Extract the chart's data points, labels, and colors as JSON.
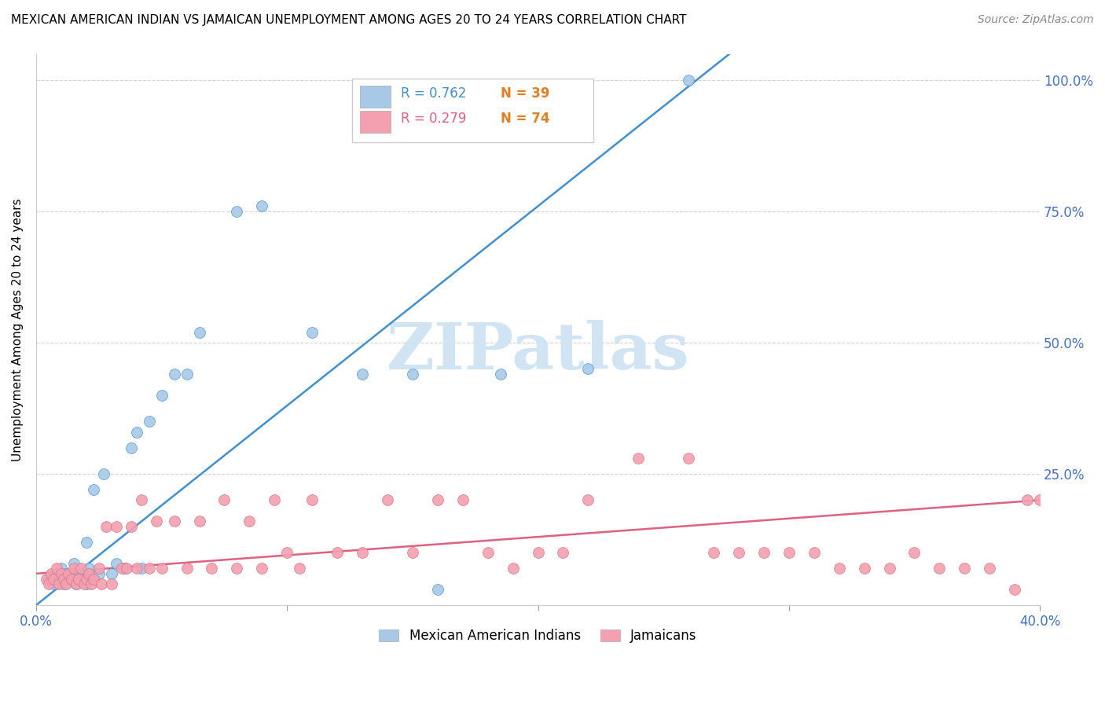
{
  "title": "MEXICAN AMERICAN INDIAN VS JAMAICAN UNEMPLOYMENT AMONG AGES 20 TO 24 YEARS CORRELATION CHART",
  "source": "Source: ZipAtlas.com",
  "ylabel": "Unemployment Among Ages 20 to 24 years",
  "xlim": [
    0.0,
    0.4
  ],
  "ylim": [
    0.0,
    1.05
  ],
  "ytick_labels_right": [
    "",
    "25.0%",
    "50.0%",
    "75.0%",
    "100.0%"
  ],
  "ytick_vals_right": [
    0.0,
    0.25,
    0.5,
    0.75,
    1.0
  ],
  "blue_R": 0.762,
  "blue_N": 39,
  "pink_R": 0.279,
  "pink_N": 74,
  "blue_scatter_x": [
    0.005,
    0.007,
    0.008,
    0.009,
    0.01,
    0.011,
    0.012,
    0.013,
    0.015,
    0.016,
    0.017,
    0.018,
    0.02,
    0.02,
    0.021,
    0.022,
    0.023,
    0.025,
    0.027,
    0.03,
    0.032,
    0.035,
    0.038,
    0.04,
    0.042,
    0.045,
    0.05,
    0.055,
    0.06,
    0.065,
    0.08,
    0.09,
    0.11,
    0.13,
    0.15,
    0.16,
    0.185,
    0.22,
    0.26
  ],
  "blue_scatter_y": [
    0.05,
    0.04,
    0.06,
    0.05,
    0.07,
    0.04,
    0.06,
    0.05,
    0.08,
    0.04,
    0.06,
    0.05,
    0.12,
    0.04,
    0.07,
    0.05,
    0.22,
    0.06,
    0.25,
    0.06,
    0.08,
    0.07,
    0.3,
    0.33,
    0.07,
    0.35,
    0.4,
    0.44,
    0.44,
    0.52,
    0.75,
    0.76,
    0.52,
    0.44,
    0.44,
    0.03,
    0.44,
    0.45,
    1.0
  ],
  "pink_scatter_x": [
    0.004,
    0.005,
    0.006,
    0.007,
    0.008,
    0.009,
    0.01,
    0.011,
    0.012,
    0.013,
    0.014,
    0.015,
    0.016,
    0.017,
    0.018,
    0.019,
    0.02,
    0.021,
    0.022,
    0.023,
    0.025,
    0.026,
    0.028,
    0.03,
    0.032,
    0.034,
    0.036,
    0.038,
    0.04,
    0.042,
    0.045,
    0.048,
    0.05,
    0.055,
    0.06,
    0.065,
    0.07,
    0.075,
    0.08,
    0.085,
    0.09,
    0.095,
    0.1,
    0.105,
    0.11,
    0.12,
    0.13,
    0.14,
    0.15,
    0.16,
    0.17,
    0.18,
    0.19,
    0.2,
    0.21,
    0.22,
    0.24,
    0.26,
    0.27,
    0.28,
    0.29,
    0.3,
    0.31,
    0.32,
    0.33,
    0.34,
    0.35,
    0.36,
    0.37,
    0.38,
    0.39,
    0.395,
    0.4,
    0.405
  ],
  "pink_scatter_y": [
    0.05,
    0.04,
    0.06,
    0.05,
    0.07,
    0.04,
    0.06,
    0.05,
    0.04,
    0.06,
    0.05,
    0.07,
    0.04,
    0.05,
    0.07,
    0.04,
    0.05,
    0.06,
    0.04,
    0.05,
    0.07,
    0.04,
    0.15,
    0.04,
    0.15,
    0.07,
    0.07,
    0.15,
    0.07,
    0.2,
    0.07,
    0.16,
    0.07,
    0.16,
    0.07,
    0.16,
    0.07,
    0.2,
    0.07,
    0.16,
    0.07,
    0.2,
    0.1,
    0.07,
    0.2,
    0.1,
    0.1,
    0.2,
    0.1,
    0.2,
    0.2,
    0.1,
    0.07,
    0.1,
    0.1,
    0.2,
    0.28,
    0.28,
    0.1,
    0.1,
    0.1,
    0.1,
    0.1,
    0.07,
    0.07,
    0.07,
    0.1,
    0.07,
    0.07,
    0.07,
    0.03,
    0.2,
    0.2,
    0.2
  ],
  "blue_color": "#a8c8e8",
  "pink_color": "#f4a0b0",
  "blue_line_color": "#4090d0",
  "pink_line_color": "#e06080",
  "blue_line_slope": 3.8,
  "blue_line_intercept": 0.0,
  "pink_line_slope": 0.35,
  "pink_line_intercept": 0.06,
  "watermark_text": "ZIPatlas",
  "watermark_color": "#d0e4f4",
  "legend_label_blue": "Mexican American Indians",
  "legend_label_pink": "Jamaicans",
  "axis_color": "#4472c4",
  "r_color_blue": "#4090d0",
  "n_color_orange": "#e08020",
  "r_color_pink": "#e06080",
  "background_color": "#ffffff",
  "grid_color": "#c8c8c8"
}
